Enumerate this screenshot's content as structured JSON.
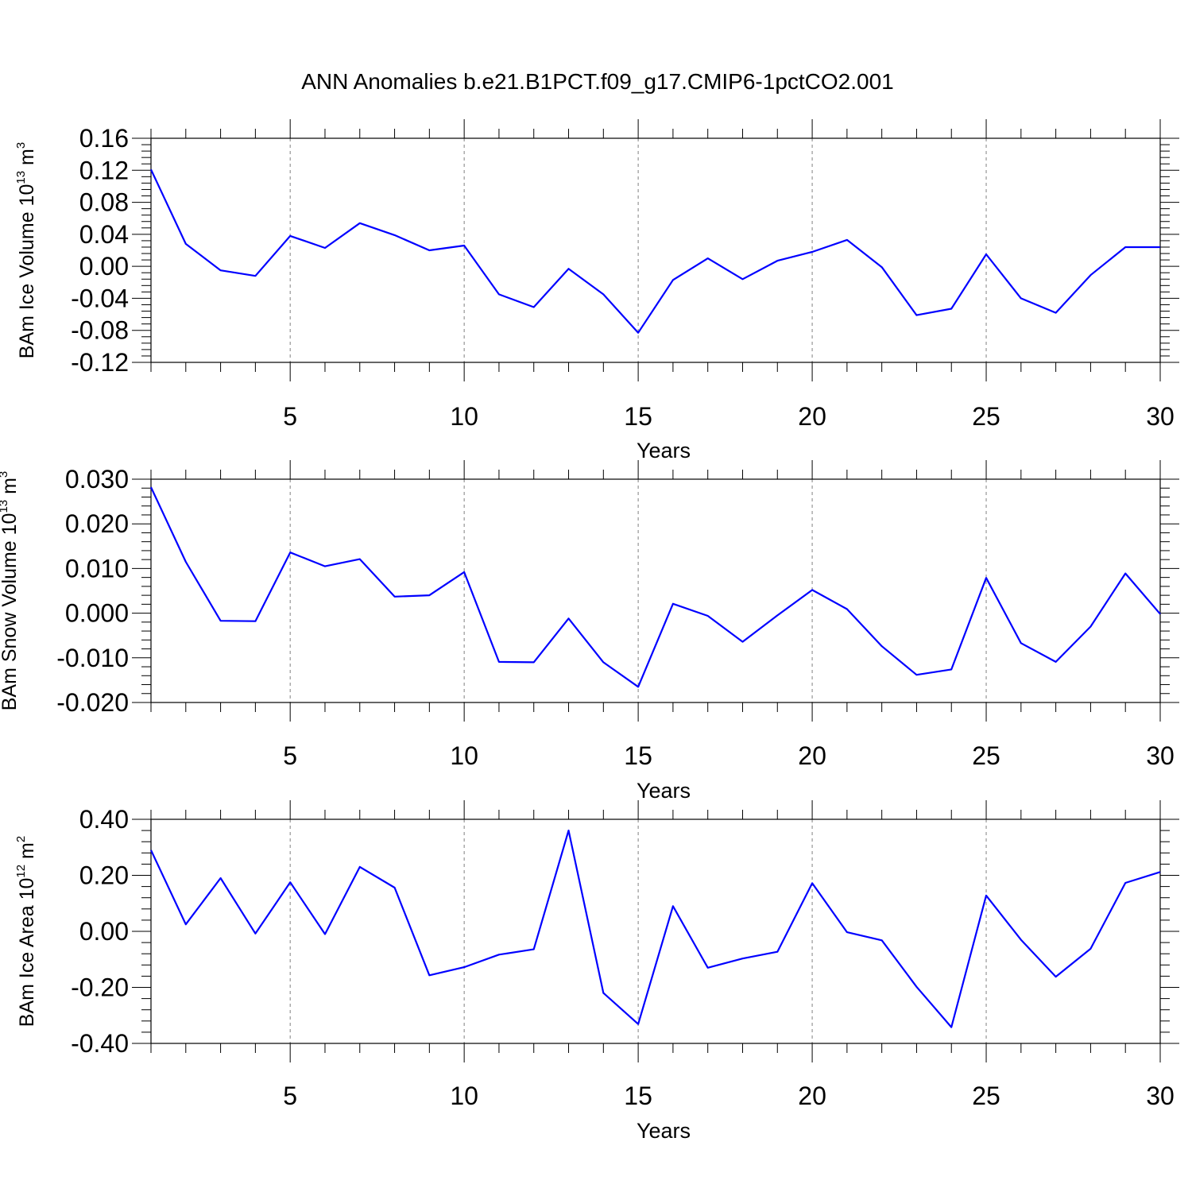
{
  "title": "ANN Anomalies b.e21.B1PCT.f09_g17.CMIP6-1pctCO2.001",
  "colors": {
    "line": "#0000ff",
    "axes": "#000000",
    "grid": "#808080"
  },
  "chart_data": [
    {
      "type": "line",
      "ylabel": {
        "text": "BAm Ice Volume 10",
        "exp": "13",
        "unit": "m",
        "unit_exp": "3"
      },
      "xlabel": "Years",
      "xlim": [
        1,
        30
      ],
      "ylim": [
        -0.12,
        0.16
      ],
      "yticks": [
        -0.12,
        -0.08,
        -0.04,
        0.0,
        0.04,
        0.08,
        0.12,
        0.16
      ],
      "ytick_labels": [
        "-0.12",
        "-0.08",
        "-0.04",
        "0.00",
        "0.04",
        "0.08",
        "0.12",
        "0.16"
      ],
      "xticks": [
        5,
        10,
        15,
        20,
        25,
        30
      ],
      "xtick_labels": [
        "5",
        "10",
        "15",
        "20",
        "25",
        "30"
      ],
      "grid": "dashed vertical at major x ticks",
      "x": [
        1,
        2,
        3,
        4,
        5,
        6,
        7,
        8,
        9,
        10,
        11,
        12,
        13,
        14,
        15,
        16,
        17,
        18,
        19,
        20,
        21,
        22,
        23,
        24,
        25,
        26,
        27,
        28,
        29,
        30
      ],
      "values": [
        0.121,
        0.028,
        -0.005,
        -0.012,
        0.038,
        0.023,
        0.054,
        0.039,
        0.02,
        0.026,
        -0.035,
        -0.051,
        -0.003,
        -0.035,
        -0.083,
        -0.017,
        0.01,
        -0.016,
        0.007,
        0.018,
        0.033,
        -0.001,
        -0.061,
        -0.053,
        0.015,
        -0.04,
        -0.058,
        -0.011,
        0.024,
        0.024
      ]
    },
    {
      "type": "line",
      "ylabel": {
        "text": "BAm Snow Volume 10",
        "exp": "13",
        "unit": "m",
        "unit_exp": "3"
      },
      "xlabel": "Years",
      "xlim": [
        1,
        30
      ],
      "ylim": [
        -0.02,
        0.03
      ],
      "yticks": [
        -0.02,
        -0.01,
        0.0,
        0.01,
        0.02,
        0.03
      ],
      "ytick_labels": [
        "-0.020",
        "-0.010",
        "0.000",
        "0.010",
        "0.020",
        "0.030"
      ],
      "xticks": [
        5,
        10,
        15,
        20,
        25,
        30
      ],
      "xtick_labels": [
        "5",
        "10",
        "15",
        "20",
        "25",
        "30"
      ],
      "grid": "dashed vertical at major x ticks",
      "x": [
        1,
        2,
        3,
        4,
        5,
        6,
        7,
        8,
        9,
        10,
        11,
        12,
        13,
        14,
        15,
        16,
        17,
        18,
        19,
        20,
        21,
        22,
        23,
        24,
        25,
        26,
        27,
        28,
        29,
        30
      ],
      "values": [
        0.0282,
        0.0115,
        -0.0017,
        -0.0018,
        0.0136,
        0.0105,
        0.0121,
        0.0037,
        0.004,
        0.0092,
        -0.0109,
        -0.011,
        -0.0012,
        -0.011,
        -0.0165,
        0.0021,
        -0.0006,
        -0.0064,
        -0.0005,
        0.0052,
        0.0009,
        -0.0074,
        -0.0138,
        -0.0126,
        0.0079,
        -0.0067,
        -0.0109,
        -0.003,
        0.0089,
        -0.0002
      ]
    },
    {
      "type": "line",
      "ylabel": {
        "text": "BAm Ice Area 10",
        "exp": "12",
        "unit": "m",
        "unit_exp": "2"
      },
      "xlabel": "Years",
      "xlim": [
        1,
        30
      ],
      "ylim": [
        -0.4,
        0.4
      ],
      "yticks": [
        -0.4,
        -0.2,
        0.0,
        0.2,
        0.4
      ],
      "ytick_labels": [
        "-0.40",
        "-0.20",
        "0.00",
        "0.20",
        "0.40"
      ],
      "xticks": [
        5,
        10,
        15,
        20,
        25,
        30
      ],
      "xtick_labels": [
        "5",
        "10",
        "15",
        "20",
        "25",
        "30"
      ],
      "grid": "dashed vertical at major x ticks",
      "x": [
        1,
        2,
        3,
        4,
        5,
        6,
        7,
        8,
        9,
        10,
        11,
        12,
        13,
        14,
        15,
        16,
        17,
        18,
        19,
        20,
        21,
        22,
        23,
        24,
        25,
        26,
        27,
        28,
        29,
        30
      ],
      "values": [
        0.29,
        0.025,
        0.19,
        -0.008,
        0.175,
        -0.01,
        0.23,
        0.156,
        -0.157,
        -0.128,
        -0.083,
        -0.064,
        0.36,
        -0.22,
        -0.331,
        0.09,
        -0.13,
        -0.097,
        -0.073,
        0.172,
        -0.003,
        -0.032,
        -0.198,
        -0.342,
        0.128,
        -0.03,
        -0.162,
        -0.062,
        0.173,
        0.212
      ]
    }
  ]
}
